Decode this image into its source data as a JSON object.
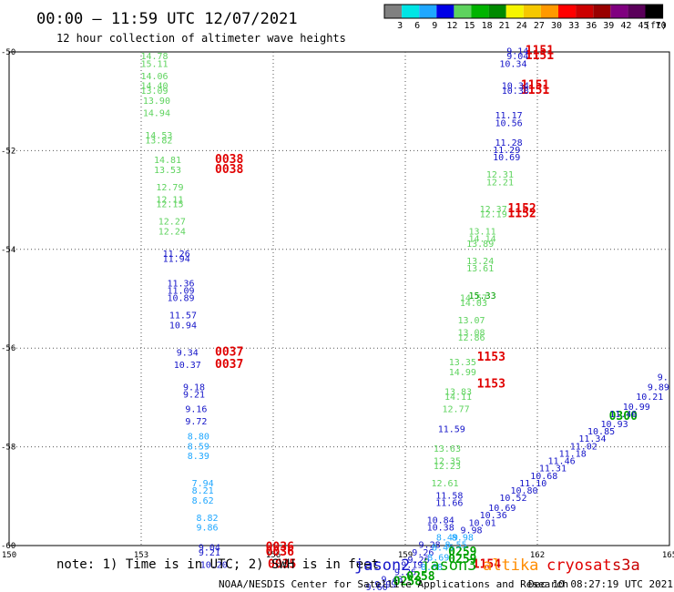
{
  "header": {
    "title": "00:00 — 11:59 UTC 12/07/2021",
    "subtitle": "12 hour collection of altimeter wave heights"
  },
  "colorbar": {
    "labels": [
      "3",
      "6",
      "9",
      "12",
      "15",
      "18",
      "21",
      "24",
      "27",
      "30",
      "33",
      "36",
      "39",
      "42",
      "45",
      "70"
    ],
    "unit": "(ft)",
    "colors": [
      "#808080",
      "#00e5e5",
      "#1fa7ff",
      "#0000e6",
      "#5ed35e",
      "#00b400",
      "#008a00",
      "#f5f500",
      "#f5c800",
      "#ff9900",
      "#ff0000",
      "#cc0000",
      "#990000",
      "#800080",
      "#5a005a",
      "#000000"
    ]
  },
  "footer": {
    "note": "note: 1) Time is in UTC; 2) SWH is in feet",
    "credit": "NOAA/NESDIS Center for Satellite Applications and Research",
    "timestamp": "Dec 10 08:27:19 UTC 2021",
    "legend": [
      {
        "name": "jason2",
        "color": "#1414c8"
      },
      {
        "name": "jason3",
        "color": "#00a000"
      },
      {
        "name": "altika",
        "color": "#ff8c00"
      },
      {
        "name": "cryosat",
        "color": "#e00000"
      },
      {
        "name": "s3a",
        "color": "#c80000"
      }
    ]
  },
  "chart_data": {
    "type": "scatter",
    "title": "00:00 — 11:59 UTC 12/07/2021",
    "subtitle": "12 hour collection of altimeter wave heights",
    "xlim": [
      150,
      165
    ],
    "ylim": [
      -60,
      -50
    ],
    "xticks": [
      "150",
      "153",
      "156",
      "159",
      "162",
      "165"
    ],
    "yticks": [
      "-50",
      "-52",
      "-54",
      "-56",
      "-58",
      "-60"
    ],
    "grid": true,
    "unit": "ft",
    "series": [
      {
        "name": "altika_a",
        "color": "#5ed35e",
        "points": [
          {
            "x": 153.3,
            "y": -50.15,
            "label": "14.78"
          },
          {
            "x": 153.3,
            "y": -50.3,
            "label": "15.11"
          },
          {
            "x": 153.3,
            "y": -50.55,
            "label": "14.06"
          },
          {
            "x": 153.3,
            "y": -50.75,
            "label": "14.40"
          },
          {
            "x": 153.3,
            "y": -50.85,
            "label": "13.09"
          },
          {
            "x": 153.35,
            "y": -51.05,
            "label": "13.90"
          },
          {
            "x": 153.35,
            "y": -51.3,
            "label": "14.94"
          },
          {
            "x": 153.4,
            "y": -51.75,
            "label": "14.53"
          },
          {
            "x": 153.4,
            "y": -51.85,
            "label": "13.82"
          },
          {
            "x": 153.6,
            "y": -52.25,
            "label": "14.81"
          },
          {
            "x": 153.6,
            "y": -52.45,
            "label": "13.53"
          },
          {
            "x": 153.65,
            "y": -52.8,
            "label": "12.79"
          },
          {
            "x": 153.65,
            "y": -53.05,
            "label": "12.11"
          },
          {
            "x": 153.65,
            "y": -53.15,
            "label": "12.15"
          },
          {
            "x": 153.7,
            "y": -53.5,
            "label": "12.27"
          },
          {
            "x": 153.7,
            "y": -53.7,
            "label": "12.24"
          }
        ]
      },
      {
        "name": "jason2_a",
        "color": "#1414c8",
        "points": [
          {
            "x": 153.8,
            "y": -54.15,
            "label": "11.26"
          },
          {
            "x": 153.8,
            "y": -54.25,
            "label": "11.94"
          },
          {
            "x": 153.9,
            "y": -54.75,
            "label": "11.36"
          },
          {
            "x": 153.9,
            "y": -54.9,
            "label": "11.09"
          },
          {
            "x": 153.9,
            "y": -55.05,
            "label": "10.89"
          },
          {
            "x": 153.95,
            "y": -55.4,
            "label": "11.57"
          },
          {
            "x": 153.95,
            "y": -55.6,
            "label": "10.94"
          },
          {
            "x": 154.05,
            "y": -56.15,
            "label": "9.34"
          },
          {
            "x": 154.05,
            "y": -56.4,
            "label": "10.37"
          },
          {
            "x": 154.2,
            "y": -56.85,
            "label": "9.18"
          },
          {
            "x": 154.2,
            "y": -57.0,
            "label": "9.21"
          },
          {
            "x": 154.25,
            "y": -57.3,
            "label": "9.16"
          },
          {
            "x": 154.25,
            "y": -57.55,
            "label": "9.72"
          }
        ]
      },
      {
        "name": "jason2_a_light",
        "color": "#1fa7ff",
        "points": [
          {
            "x": 154.3,
            "y": -57.85,
            "label": "8.80"
          },
          {
            "x": 154.3,
            "y": -58.05,
            "label": "8.59"
          },
          {
            "x": 154.3,
            "y": -58.25,
            "label": "8.39"
          },
          {
            "x": 154.4,
            "y": -58.8,
            "label": "7.94"
          },
          {
            "x": 154.4,
            "y": -58.95,
            "label": "8.21"
          },
          {
            "x": 154.4,
            "y": -59.15,
            "label": "8.62"
          },
          {
            "x": 154.5,
            "y": -59.5,
            "label": "8.82"
          },
          {
            "x": 154.5,
            "y": -59.7,
            "label": "9.86"
          }
        ]
      },
      {
        "name": "jason2_b",
        "color": "#1414c8",
        "points": [
          {
            "x": 154.55,
            "y": -60.1,
            "label": "9.04"
          },
          {
            "x": 154.55,
            "y": -60.2,
            "label": "9.21"
          },
          {
            "x": 154.65,
            "y": -60.45,
            "label": "10.20"
          }
        ]
      },
      {
        "name": "cryosat_a",
        "color": "#e00000",
        "points": [
          {
            "x": 155.0,
            "y": -52.25,
            "label": "0038"
          },
          {
            "x": 155.0,
            "y": -52.45,
            "label": "0038"
          },
          {
            "x": 155.0,
            "y": -56.15,
            "label": "0037"
          },
          {
            "x": 155.0,
            "y": -56.4,
            "label": "0037"
          },
          {
            "x": 156.15,
            "y": -60.1,
            "label": "0036"
          },
          {
            "x": 156.15,
            "y": -60.2,
            "label": "0036"
          },
          {
            "x": 156.2,
            "y": -60.45,
            "label": "0035"
          }
        ]
      },
      {
        "name": "cryosat_b",
        "color": "#e00000",
        "points": [
          {
            "x": 162.05,
            "y": -50.05,
            "label": "1151"
          },
          {
            "x": 162.05,
            "y": -50.15,
            "label": "1151"
          },
          {
            "x": 161.95,
            "y": -50.75,
            "label": "1151"
          },
          {
            "x": 161.95,
            "y": -50.85,
            "label": "1151"
          },
          {
            "x": 161.65,
            "y": -53.25,
            "label": "1152"
          },
          {
            "x": 161.65,
            "y": -53.35,
            "label": "1152"
          },
          {
            "x": 160.95,
            "y": -56.25,
            "label": "1153"
          },
          {
            "x": 160.95,
            "y": -56.8,
            "label": "1153"
          },
          {
            "x": 160.85,
            "y": -60.45,
            "label": "1154"
          }
        ]
      },
      {
        "name": "jason2_c",
        "color": "#1414c8",
        "points": [
          {
            "x": 161.55,
            "y": -50.05,
            "label": "9.14"
          },
          {
            "x": 161.55,
            "y": -50.15,
            "label": "9.04"
          },
          {
            "x": 161.45,
            "y": -50.3,
            "label": "10.34"
          },
          {
            "x": 161.5,
            "y": -50.75,
            "label": "10.34"
          },
          {
            "x": 161.5,
            "y": -50.85,
            "label": "10.38"
          },
          {
            "x": 161.35,
            "y": -51.35,
            "label": "11.17"
          },
          {
            "x": 161.35,
            "y": -51.5,
            "label": "10.56"
          },
          {
            "x": 161.35,
            "y": -51.9,
            "label": "11.28"
          },
          {
            "x": 161.3,
            "y": -52.05,
            "label": "11.29"
          },
          {
            "x": 161.3,
            "y": -52.2,
            "label": "10.69"
          }
        ]
      },
      {
        "name": "altika_b",
        "color": "#5ed35e",
        "points": [
          {
            "x": 161.15,
            "y": -52.55,
            "label": "12.31"
          },
          {
            "x": 161.15,
            "y": -52.7,
            "label": "12.21"
          },
          {
            "x": 161.0,
            "y": -53.25,
            "label": "12.37"
          },
          {
            "x": 161.0,
            "y": -53.35,
            "label": "12.19"
          },
          {
            "x": 160.75,
            "y": -53.7,
            "label": "13.11"
          },
          {
            "x": 160.75,
            "y": -53.85,
            "label": "14.14"
          },
          {
            "x": 160.7,
            "y": -53.95,
            "label": "13.89"
          },
          {
            "x": 160.7,
            "y": -54.3,
            "label": "13.24"
          },
          {
            "x": 160.7,
            "y": -54.45,
            "label": "13.61"
          },
          {
            "x": 160.55,
            "y": -55.05,
            "label": "14.57"
          },
          {
            "x": 160.55,
            "y": -55.15,
            "label": "14.03"
          },
          {
            "x": 160.5,
            "y": -55.5,
            "label": "13.07"
          },
          {
            "x": 160.5,
            "y": -55.75,
            "label": "13.08"
          },
          {
            "x": 160.5,
            "y": -55.85,
            "label": "12.86"
          },
          {
            "x": 160.3,
            "y": -56.35,
            "label": "13.35"
          },
          {
            "x": 160.3,
            "y": -56.55,
            "label": "14.99"
          },
          {
            "x": 160.2,
            "y": -56.95,
            "label": "13.83"
          },
          {
            "x": 160.2,
            "y": -57.05,
            "label": "14.11"
          },
          {
            "x": 160.15,
            "y": -57.3,
            "label": "12.77"
          },
          {
            "x": 159.95,
            "y": -58.1,
            "label": "13.63"
          },
          {
            "x": 159.95,
            "y": -58.35,
            "label": "12.35"
          },
          {
            "x": 159.95,
            "y": -58.45,
            "label": "12.23"
          },
          {
            "x": 159.9,
            "y": -58.8,
            "label": "12.61"
          }
        ]
      },
      {
        "name": "jason3_a",
        "color": "#00a000",
        "points": [
          {
            "x": 160.75,
            "y": -55.0,
            "label": "15.33"
          }
        ]
      },
      {
        "name": "jason2_d",
        "color": "#1414c8",
        "points": [
          {
            "x": 160.05,
            "y": -57.7,
            "label": "11.59"
          },
          {
            "x": 160.0,
            "y": -59.05,
            "label": "11.58"
          },
          {
            "x": 160.0,
            "y": -59.2,
            "label": "11.66"
          },
          {
            "x": 159.8,
            "y": -59.55,
            "label": "10.84"
          },
          {
            "x": 159.8,
            "y": -59.7,
            "label": "10.38"
          },
          {
            "x": 159.55,
            "y": -60.05,
            "label": "9.28"
          },
          {
            "x": 159.4,
            "y": -60.2,
            "label": "9.26"
          },
          {
            "x": 159.3,
            "y": -60.35,
            "label": "9.26"
          },
          {
            "x": 159.15,
            "y": -60.45,
            "label": "9.19"
          },
          {
            "x": 159.0,
            "y": -60.6,
            "label": "9.26"
          },
          {
            "x": 158.7,
            "y": -60.75,
            "label": "9.43"
          },
          {
            "x": 158.55,
            "y": -60.85,
            "label": "9.99"
          },
          {
            "x": 158.35,
            "y": -60.9,
            "label": "9.60"
          }
        ]
      },
      {
        "name": "jason2_light_b",
        "color": "#1fa7ff",
        "points": [
          {
            "x": 159.95,
            "y": -59.9,
            "label": "8.49"
          },
          {
            "x": 159.85,
            "y": -60.1,
            "label": "8.45"
          },
          {
            "x": 159.75,
            "y": -60.3,
            "label": "8.69"
          },
          {
            "x": 159.6,
            "y": -60.5,
            "label": "8.68"
          }
        ]
      },
      {
        "name": "jason3_b",
        "color": "#00a000",
        "points": [
          {
            "x": 160.3,
            "y": -60.2,
            "label": "0259"
          },
          {
            "x": 160.3,
            "y": -60.35,
            "label": "0259"
          },
          {
            "x": 159.35,
            "y": -60.7,
            "label": "0258"
          },
          {
            "x": 159.05,
            "y": -60.8,
            "label": "0258"
          },
          {
            "x": 163.95,
            "y": -57.45,
            "label": "0300"
          }
        ]
      },
      {
        "name": "jason2_e",
        "color": "#1414c8",
        "points": [
          {
            "x": 164.85,
            "y": -56.65,
            "label": "9."
          },
          {
            "x": 164.75,
            "y": -56.85,
            "label": "9.89"
          },
          {
            "x": 164.55,
            "y": -57.05,
            "label": "10.21"
          },
          {
            "x": 164.25,
            "y": -57.25,
            "label": "10.99"
          },
          {
            "x": 163.95,
            "y": -57.4,
            "label": "11.46"
          },
          {
            "x": 163.75,
            "y": -57.6,
            "label": "10.93"
          },
          {
            "x": 163.45,
            "y": -57.75,
            "label": "10.85"
          },
          {
            "x": 163.25,
            "y": -57.9,
            "label": "11.34"
          },
          {
            "x": 163.05,
            "y": -58.05,
            "label": "11.02"
          },
          {
            "x": 162.8,
            "y": -58.2,
            "label": "11.18"
          },
          {
            "x": 162.55,
            "y": -58.35,
            "label": "11.46"
          },
          {
            "x": 162.35,
            "y": -58.5,
            "label": "11.31"
          },
          {
            "x": 162.15,
            "y": -58.65,
            "label": "10.68"
          },
          {
            "x": 161.9,
            "y": -58.8,
            "label": "11.10"
          },
          {
            "x": 161.7,
            "y": -58.95,
            "label": "10.80"
          },
          {
            "x": 161.45,
            "y": -59.1,
            "label": "10.52"
          },
          {
            "x": 161.2,
            "y": -59.3,
            "label": "10.69"
          },
          {
            "x": 161.0,
            "y": -59.45,
            "label": "10.36"
          },
          {
            "x": 160.75,
            "y": -59.6,
            "label": "10.01"
          },
          {
            "x": 160.5,
            "y": -59.75,
            "label": "9.98"
          }
        ]
      },
      {
        "name": "jason2_light_c",
        "color": "#1fa7ff",
        "points": [
          {
            "x": 160.3,
            "y": -59.9,
            "label": "8.98"
          },
          {
            "x": 160.15,
            "y": -60.05,
            "label": "8.55"
          }
        ]
      }
    ]
  }
}
